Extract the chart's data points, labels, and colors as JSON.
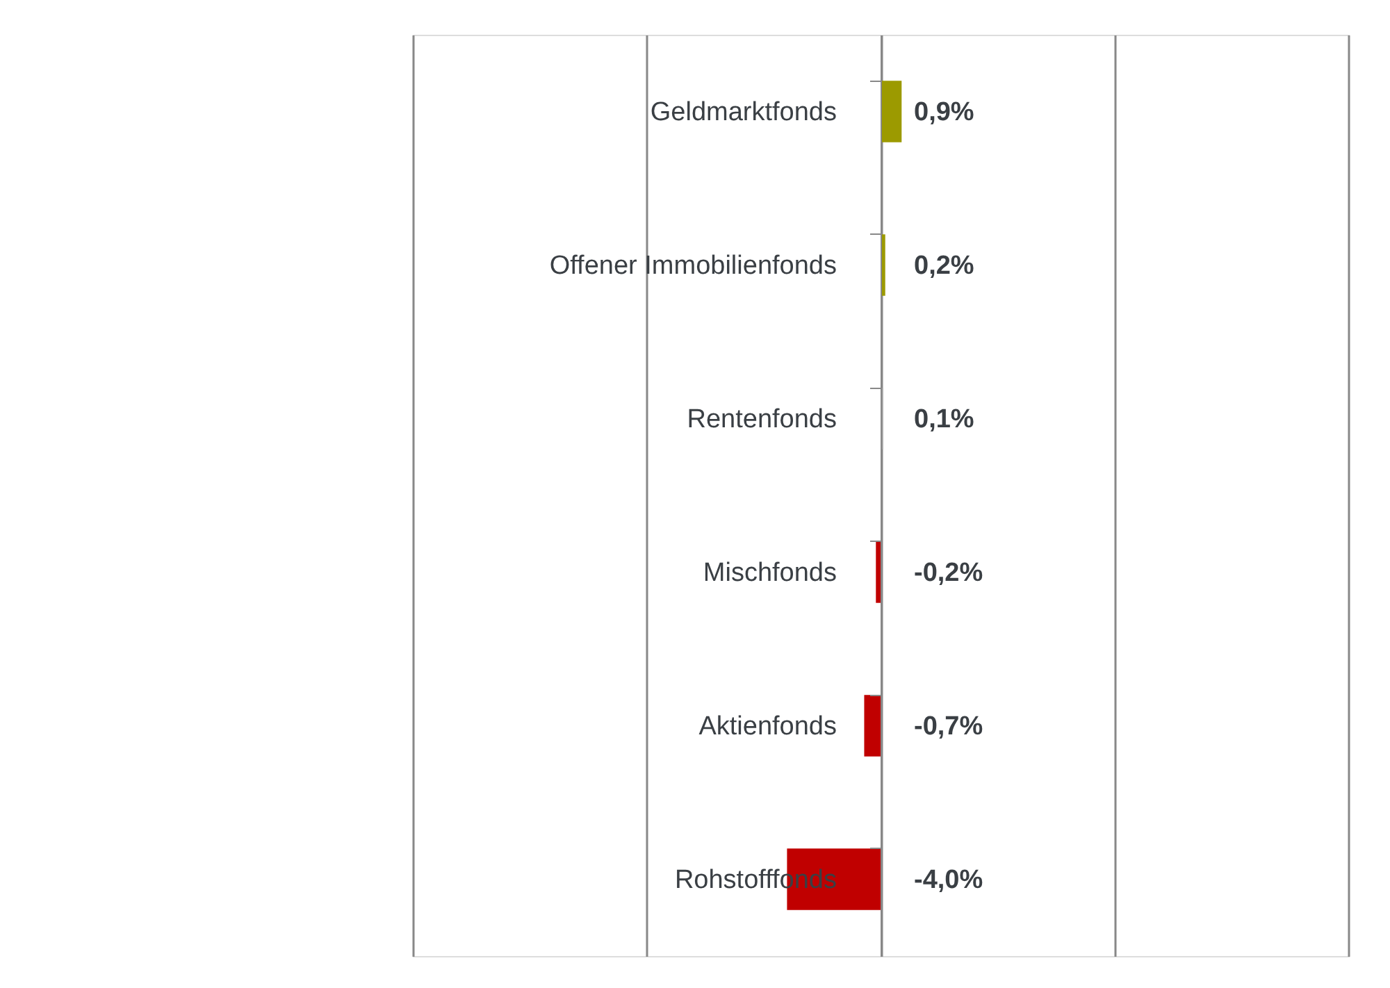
{
  "chart_data": {
    "type": "bar",
    "orientation": "horizontal",
    "categories": [
      "Geldmarktfonds",
      "Offener Immobilienfonds",
      "Rentenfonds",
      "Mischfonds",
      "Aktienfonds",
      "Rohstofffonds"
    ],
    "values": [
      0.9,
      0.2,
      0.1,
      -0.2,
      -0.7,
      -4.0
    ],
    "colors": [
      "#9c9a00",
      "#9c9a00",
      "#a0a0a0",
      "#c00000",
      "#c00000",
      "#c00000"
    ],
    "value_labels": [
      "0,9%",
      "0,2%",
      "0,1%",
      "-0,2%",
      "-0,7%",
      "-4,0%"
    ],
    "xlim": [
      -20,
      20
    ],
    "xticks": [
      {
        "value": -20,
        "label": null
      },
      {
        "value": -10,
        "label": null
      },
      {
        "value": 0,
        "label": null
      },
      {
        "value": 10,
        "label": null
      },
      {
        "value": 20,
        "label": null
      }
    ],
    "grid": "x",
    "tick_labels": "y"
  }
}
